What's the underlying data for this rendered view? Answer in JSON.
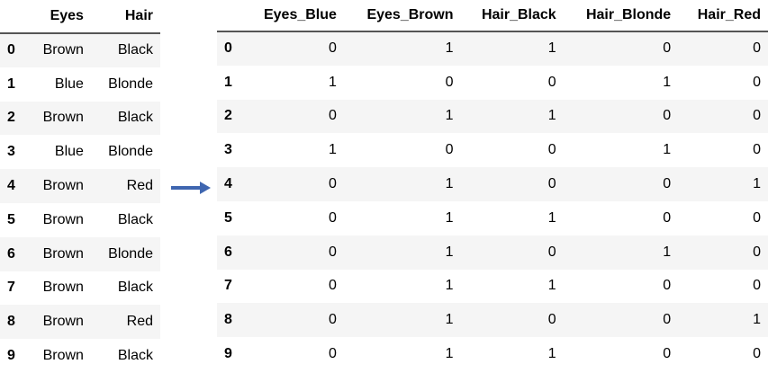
{
  "original": {
    "columns": [
      "Eyes",
      "Hair"
    ],
    "rows": [
      {
        "index": "0",
        "values": [
          "Brown",
          "Black"
        ]
      },
      {
        "index": "1",
        "values": [
          "Blue",
          "Blonde"
        ]
      },
      {
        "index": "2",
        "values": [
          "Brown",
          "Black"
        ]
      },
      {
        "index": "3",
        "values": [
          "Blue",
          "Blonde"
        ]
      },
      {
        "index": "4",
        "values": [
          "Brown",
          "Red"
        ]
      },
      {
        "index": "5",
        "values": [
          "Brown",
          "Black"
        ]
      },
      {
        "index": "6",
        "values": [
          "Brown",
          "Blonde"
        ]
      },
      {
        "index": "7",
        "values": [
          "Brown",
          "Black"
        ]
      },
      {
        "index": "8",
        "values": [
          "Brown",
          "Red"
        ]
      },
      {
        "index": "9",
        "values": [
          "Brown",
          "Black"
        ]
      }
    ]
  },
  "encoded": {
    "columns": [
      "Eyes_Blue",
      "Eyes_Brown",
      "Hair_Black",
      "Hair_Blonde",
      "Hair_Red"
    ],
    "rows": [
      {
        "index": "0",
        "values": [
          "0",
          "1",
          "1",
          "0",
          "0"
        ]
      },
      {
        "index": "1",
        "values": [
          "1",
          "0",
          "0",
          "1",
          "0"
        ]
      },
      {
        "index": "2",
        "values": [
          "0",
          "1",
          "1",
          "0",
          "0"
        ]
      },
      {
        "index": "3",
        "values": [
          "1",
          "0",
          "0",
          "1",
          "0"
        ]
      },
      {
        "index": "4",
        "values": [
          "0",
          "1",
          "0",
          "0",
          "1"
        ]
      },
      {
        "index": "5",
        "values": [
          "0",
          "1",
          "1",
          "0",
          "0"
        ]
      },
      {
        "index": "6",
        "values": [
          "0",
          "1",
          "0",
          "1",
          "0"
        ]
      },
      {
        "index": "7",
        "values": [
          "0",
          "1",
          "1",
          "0",
          "0"
        ]
      },
      {
        "index": "8",
        "values": [
          "0",
          "1",
          "0",
          "0",
          "1"
        ]
      },
      {
        "index": "9",
        "values": [
          "0",
          "1",
          "1",
          "0",
          "0"
        ]
      }
    ]
  },
  "arrow": {
    "icon": "arrow-right-icon",
    "color": "#3f66b0"
  }
}
